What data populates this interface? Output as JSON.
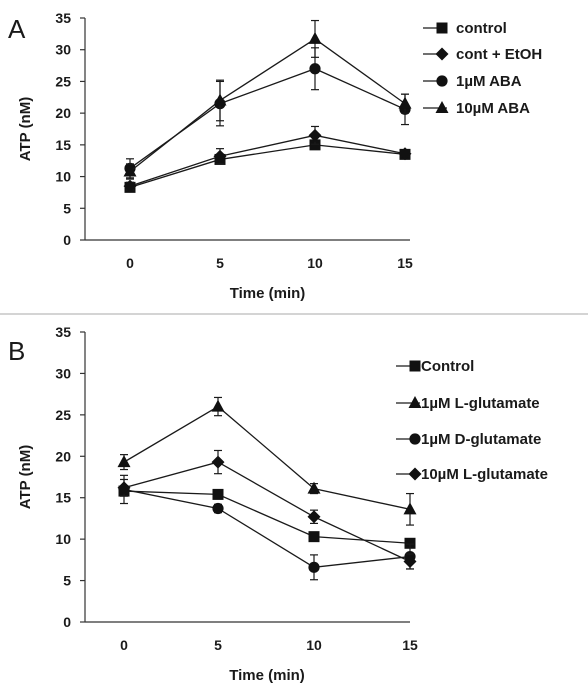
{
  "chart_data": [
    {
      "panel": "A",
      "type": "line",
      "xlabel": "Time  (min)",
      "ylabel": "ATP  (nM)",
      "x": [
        0,
        5,
        10,
        15
      ],
      "ylim": [
        0,
        35
      ],
      "yticks": [
        0,
        5,
        10,
        15,
        20,
        25,
        30,
        35
      ],
      "grid": false,
      "legend_position": "top-right",
      "series": [
        {
          "name": "control",
          "marker": "square",
          "values": [
            8.3,
            12.7,
            15.0,
            13.5
          ],
          "errors": [
            0.4,
            0.5,
            0.6,
            0.4
          ]
        },
        {
          "name": "cont + EtOH",
          "marker": "diamond",
          "values": [
            8.5,
            13.2,
            16.5,
            13.6
          ],
          "errors": [
            0.6,
            1.2,
            1.4,
            0.4
          ]
        },
        {
          "name": "1µM ABA",
          "marker": "circle",
          "values": [
            11.3,
            21.5,
            27.0,
            20.6
          ],
          "errors": [
            1.5,
            3.5,
            3.3,
            2.4
          ]
        },
        {
          "name": "10µM ABA",
          "marker": "triangle",
          "values": [
            10.8,
            22.0,
            31.7,
            21.5
          ],
          "errors": [
            1.2,
            3.2,
            2.9,
            1.5
          ]
        }
      ]
    },
    {
      "panel": "B",
      "type": "line",
      "xlabel": "Time  (min)",
      "ylabel": "ATP  (nM)",
      "x": [
        0,
        5,
        10,
        15
      ],
      "ylim": [
        0,
        35
      ],
      "yticks": [
        0,
        5,
        10,
        15,
        20,
        25,
        30,
        35
      ],
      "grid": false,
      "legend_position": "right",
      "series": [
        {
          "name": "Control",
          "marker": "square",
          "values": [
            15.8,
            15.4,
            10.3,
            9.5
          ],
          "errors": [
            0.6,
            0.4,
            0.4,
            0.4
          ]
        },
        {
          "name": "1µM L-glutamate",
          "marker": "triangle",
          "values": [
            19.3,
            26.0,
            16.1,
            13.6
          ],
          "errors": [
            0.9,
            1.1,
            0.6,
            1.9
          ]
        },
        {
          "name": "1µM D-glutamate",
          "marker": "circle",
          "values": [
            16.0,
            13.7,
            6.6,
            7.9
          ],
          "errors": [
            1.7,
            0.5,
            1.5,
            1.5
          ]
        },
        {
          "name": "10µM L-glutamate",
          "marker": "diamond",
          "values": [
            16.2,
            19.3,
            12.7,
            7.3
          ],
          "errors": [
            1.0,
            1.4,
            0.8,
            0.9
          ]
        }
      ]
    }
  ]
}
